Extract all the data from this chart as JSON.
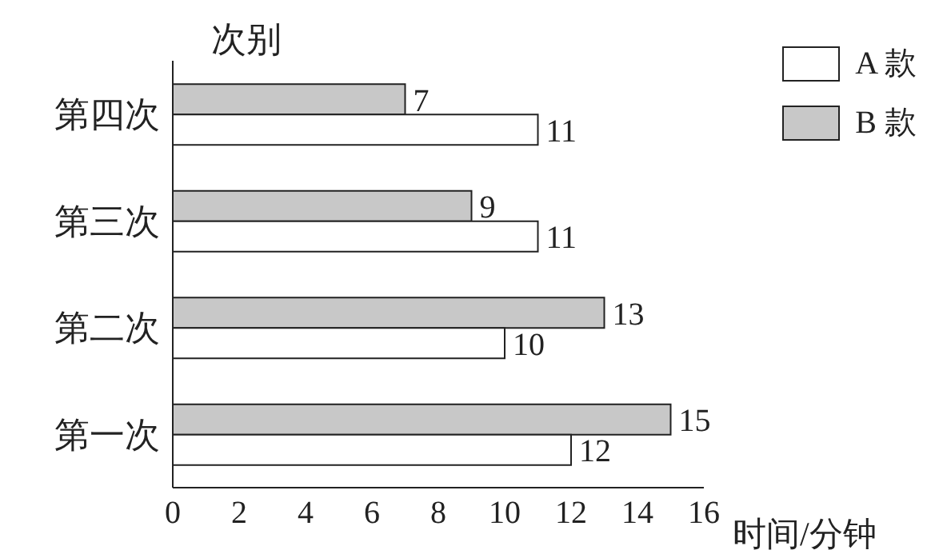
{
  "chart_data": {
    "type": "bar",
    "orientation": "horizontal",
    "xlabel": "时间/分钟",
    "ylabel": "次别",
    "categories": [
      "第四次",
      "第三次",
      "第二次",
      "第一次"
    ],
    "series": [
      {
        "name": "A 款",
        "color": "#ffffff",
        "values": [
          11,
          11,
          10,
          12
        ]
      },
      {
        "name": "B 款",
        "color": "#c8c8c8",
        "values": [
          7,
          9,
          13,
          15
        ]
      }
    ],
    "xlim": [
      0,
      16
    ],
    "xticks": [
      0,
      2,
      4,
      6,
      8,
      10,
      12,
      14,
      16
    ],
    "data_labels": true,
    "legend": "top right",
    "grid": false
  }
}
